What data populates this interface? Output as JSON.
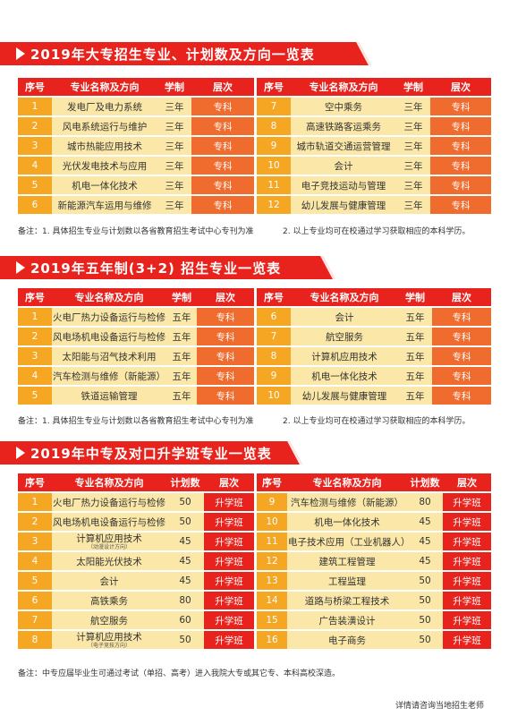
{
  "section1": {
    "title": "2019年大专招生专业、计划数及方向一览表",
    "headers": [
      "序号",
      "专业名称及方向",
      "学制",
      "层次"
    ],
    "left": [
      {
        "no": "1",
        "name": "发电厂及电力系统",
        "years": "三年",
        "level": "专科"
      },
      {
        "no": "2",
        "name": "风电系统运行与维护",
        "years": "三年",
        "level": "专科"
      },
      {
        "no": "3",
        "name": "城市热能应用技术",
        "years": "三年",
        "level": "专科"
      },
      {
        "no": "4",
        "name": "光伏发电技术与应用",
        "years": "三年",
        "level": "专科"
      },
      {
        "no": "5",
        "name": "机电一体化技术",
        "years": "三年",
        "level": "专科"
      },
      {
        "no": "6",
        "name": "新能源汽车运用与维修",
        "years": "三年",
        "level": "专科"
      }
    ],
    "right": [
      {
        "no": "7",
        "name": "空中乘务",
        "years": "三年",
        "level": "专科"
      },
      {
        "no": "8",
        "name": "高速铁路客运乘务",
        "years": "三年",
        "level": "专科"
      },
      {
        "no": "9",
        "name": "城市轨道交通运营管理",
        "years": "三年",
        "level": "专科"
      },
      {
        "no": "10",
        "name": "会计",
        "years": "三年",
        "level": "专科"
      },
      {
        "no": "11",
        "name": "电子竞技运动与管理",
        "years": "三年",
        "level": "专科"
      },
      {
        "no": "12",
        "name": "幼儿发展与健康管理",
        "years": "三年",
        "level": "专科"
      }
    ],
    "note_left": "备注：1. 具体招生专业与计划数以各省教育招生考试中心专刊为准",
    "note_right": "2. 以上专业均可在校通过学习获取相应的本科学历。"
  },
  "section2": {
    "title": "2019年五年制(3+2) 招生专业一览表",
    "headers": [
      "序号",
      "专业名称及方向",
      "学制",
      "层次"
    ],
    "left": [
      {
        "no": "1",
        "name": "火电厂热力设备运行与检修",
        "years": "五年",
        "level": "专科"
      },
      {
        "no": "2",
        "name": "风电场机电设备运行与检修",
        "years": "五年",
        "level": "专科"
      },
      {
        "no": "3",
        "name": "太阳能与沼气技术利用",
        "years": "五年",
        "level": "专科"
      },
      {
        "no": "4",
        "name": "汽车检测与维修（新能源）",
        "years": "五年",
        "level": "专科"
      },
      {
        "no": "5",
        "name": "铁道运输管理",
        "years": "五年",
        "level": "专科"
      }
    ],
    "right": [
      {
        "no": "6",
        "name": "会计",
        "years": "五年",
        "level": "专科"
      },
      {
        "no": "7",
        "name": "航空服务",
        "years": "五年",
        "level": "专科"
      },
      {
        "no": "8",
        "name": "计算机应用技术",
        "years": "五年",
        "level": "专科"
      },
      {
        "no": "9",
        "name": "机电一体化技术",
        "years": "五年",
        "level": "专科"
      },
      {
        "no": "10",
        "name": "幼儿发展与健康管理",
        "years": "五年",
        "level": "专科"
      }
    ],
    "note_left": "备注：1. 具体招生专业与计划数以各省教育招生考试中心专刊为准",
    "note_right": "2. 以上专业均可在校通过学习获取相应的本科学历。"
  },
  "section3": {
    "title": "2019年中专及对口升学班专业一览表",
    "headers": [
      "序号",
      "专业名称及方向",
      "计划数",
      "层次"
    ],
    "left": [
      {
        "no": "1",
        "name": "火电厂热力设备运行与检修",
        "sub": "",
        "plan": "50",
        "level": "升学班"
      },
      {
        "no": "2",
        "name": "风电场机电设备运行与检修",
        "sub": "",
        "plan": "50",
        "level": "升学班"
      },
      {
        "no": "3",
        "name": "计算机应用技术",
        "sub": "（动漫设计方向）",
        "plan": "45",
        "level": "升学班"
      },
      {
        "no": "4",
        "name": "太阳能光伏技术",
        "sub": "",
        "plan": "45",
        "level": "升学班"
      },
      {
        "no": "5",
        "name": "会计",
        "sub": "",
        "plan": "45",
        "level": "升学班"
      },
      {
        "no": "6",
        "name": "高铁乘务",
        "sub": "",
        "plan": "80",
        "level": "升学班"
      },
      {
        "no": "7",
        "name": "航空服务",
        "sub": "",
        "plan": "60",
        "level": "升学班"
      },
      {
        "no": "8",
        "name": "计算机应用技术",
        "sub": "（电子竞技方向）",
        "plan": "50",
        "level": "升学班"
      }
    ],
    "right": [
      {
        "no": "9",
        "name": "汽车检测与维修（新能源）",
        "sub": "",
        "plan": "80",
        "level": "升学班"
      },
      {
        "no": "10",
        "name": "机电一体化技术",
        "sub": "",
        "plan": "45",
        "level": "升学班"
      },
      {
        "no": "11",
        "name": "电子技术应用（工业机器人）",
        "sub": "",
        "plan": "45",
        "level": "升学班"
      },
      {
        "no": "12",
        "name": "建筑工程管理",
        "sub": "",
        "plan": "45",
        "level": "升学班"
      },
      {
        "no": "13",
        "name": "工程监理",
        "sub": "",
        "plan": "50",
        "level": "升学班"
      },
      {
        "no": "14",
        "name": "道路与桥梁工程技术",
        "sub": "",
        "plan": "50",
        "level": "升学班"
      },
      {
        "no": "15",
        "name": "广告装潢设计",
        "sub": "",
        "plan": "50",
        "level": "升学班"
      },
      {
        "no": "16",
        "name": "电子商务",
        "sub": "",
        "plan": "50",
        "level": "升学班"
      }
    ],
    "note": "备注：中专应届毕业生可通过考试（单招、高考）进入我院大专或其它专、本科高校深造。"
  },
  "footer": "详情请咨询当地招生老师",
  "colors": {
    "red": "#e8221c",
    "orange": "#f5a623",
    "cream": "#fbe8a8",
    "orange_red": "#f06b2e"
  }
}
